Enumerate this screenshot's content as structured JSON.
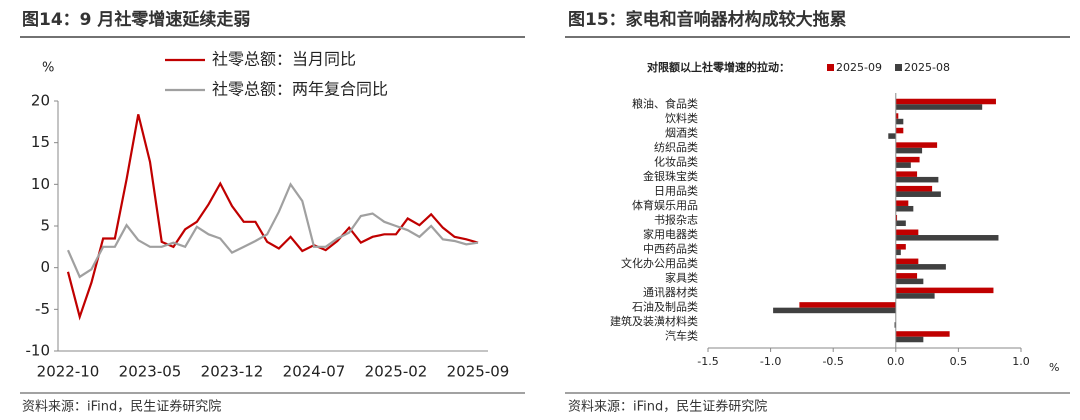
{
  "chart_data": [
    {
      "type": "line",
      "title": "图14：9 月社零增速延续走弱",
      "y_label": "%",
      "categories": [
        "2022-10",
        null,
        null,
        null,
        null,
        null,
        null,
        "2023-05",
        null,
        null,
        null,
        null,
        null,
        null,
        "2023-12",
        null,
        null,
        null,
        null,
        null,
        null,
        "2024-07",
        null,
        null,
        null,
        null,
        null,
        null,
        "2025-02",
        null,
        null,
        null,
        null,
        null,
        null,
        "2025-09"
      ],
      "series": [
        {
          "name": "社零总额：当月同比",
          "color": "#c00000",
          "values": [
            -0.5,
            -5.9,
            -1.8,
            3.5,
            3.5,
            10.6,
            18.4,
            12.7,
            3.1,
            2.5,
            4.6,
            5.5,
            7.6,
            10.1,
            7.4,
            5.5,
            5.5,
            3.1,
            2.3,
            3.7,
            2.0,
            2.7,
            2.1,
            3.2,
            4.8,
            3.0,
            3.7,
            4.0,
            4.0,
            5.9,
            5.1,
            6.4,
            4.8,
            3.7,
            3.4,
            3.0
          ]
        },
        {
          "name": "社零总额：两年复合同比",
          "color": "#a0a0a0",
          "values": [
            2.1,
            -1.1,
            -0.2,
            2.5,
            2.5,
            5.1,
            3.3,
            2.5,
            2.5,
            3.0,
            2.5,
            4.9,
            4.0,
            3.5,
            1.8,
            2.5,
            3.2,
            4.0,
            6.7,
            10.0,
            8.0,
            2.5,
            2.5,
            3.5,
            4.2,
            6.2,
            6.5,
            5.5,
            5.0,
            4.5,
            3.7,
            5.0,
            3.4,
            3.2,
            2.8,
            3.0
          ]
        }
      ],
      "ylim": [
        -10,
        20
      ],
      "yticks": [
        -10,
        -5,
        0,
        5,
        10,
        15,
        20
      ],
      "source": "资料来源：iFind，民生证券研究院"
    },
    {
      "type": "hbar",
      "title": "图15：家电和音响器材构成较大拖累",
      "subtitle": "对限额以上社零增速的拉动：",
      "x_label": "%",
      "categories": [
        "粮油、食品类",
        "饮料类",
        "烟酒类",
        "纺织品类",
        "化妆品类",
        "金银珠宝类",
        "日用品类",
        "体育娱乐用品",
        "书报杂志",
        "家用电器类",
        "中西药品类",
        "文化办公用品类",
        "家具类",
        "通讯器材类",
        "石油及制品类",
        "建筑及装潢材料类",
        "汽车类"
      ],
      "series": [
        {
          "name": "2025-09",
          "color": "#c00000",
          "values": [
            0.8,
            0.02,
            0.06,
            0.33,
            0.19,
            0.17,
            0.29,
            0.1,
            0.01,
            0.18,
            0.08,
            0.18,
            0.17,
            0.78,
            -0.77,
            0.0,
            0.43
          ]
        },
        {
          "name": "2025-08",
          "color": "#404040",
          "values": [
            0.69,
            0.06,
            -0.06,
            0.21,
            0.12,
            0.34,
            0.36,
            0.14,
            0.08,
            0.82,
            0.04,
            0.4,
            0.22,
            0.31,
            -0.98,
            -0.01,
            0.22
          ]
        }
      ],
      "xlim": [
        -1.5,
        1.0
      ],
      "xticks": [
        -1.5,
        {
          "value": -1.0,
          "label": "-1.0"
        },
        -0.5,
        {
          "value": 0.0,
          "label": "0.0"
        },
        0.5,
        {
          "value": 1.0,
          "label": "1.0"
        }
      ],
      "source": "资料来源：iFind，民生证券研究院"
    }
  ]
}
